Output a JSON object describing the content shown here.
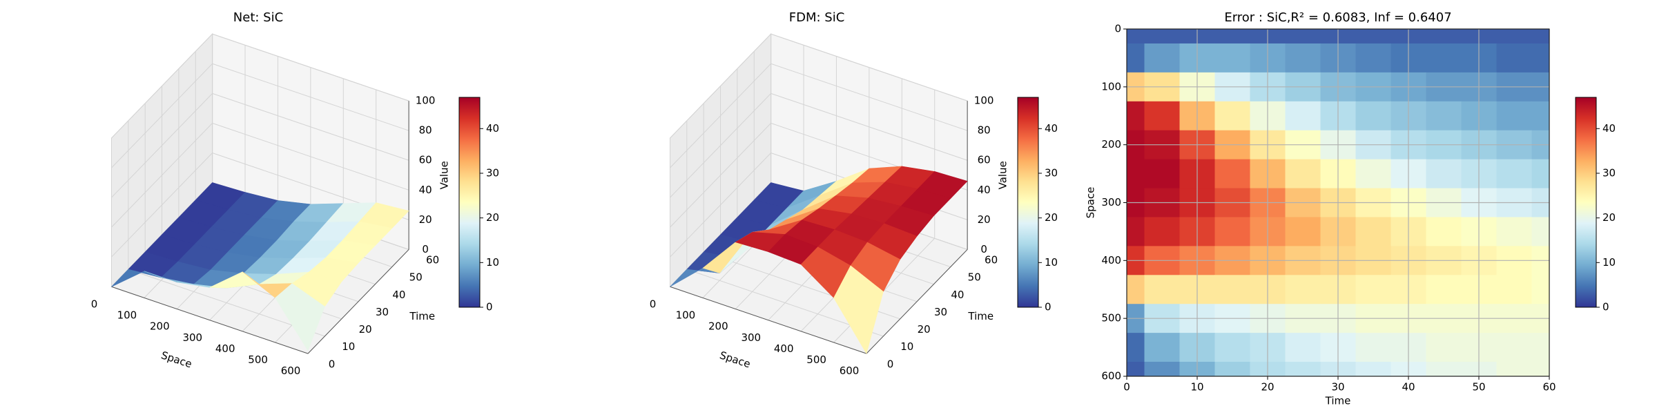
{
  "chart_data": [
    {
      "type": "surface3d",
      "title": "Net: SiC",
      "xlabel": "Space",
      "ylabel": "Time",
      "zlabel": "Value",
      "x": [
        0,
        100,
        200,
        300,
        400,
        500,
        600
      ],
      "y": [
        0,
        10,
        20,
        30,
        40,
        50,
        60
      ],
      "z": [
        [
          0,
          0,
          0,
          0,
          0,
          0,
          0
        ],
        [
          18,
          2,
          1,
          1,
          1,
          1,
          1
        ],
        [
          18,
          5,
          3,
          3,
          3,
          3,
          3
        ],
        [
          22,
          10,
          8,
          7,
          7,
          8,
          8
        ],
        [
          40,
          20,
          15,
          14,
          14,
          15,
          16
        ],
        [
          30,
          28,
          24,
          22,
          22,
          23,
          24
        ],
        [
          2,
          20,
          25,
          26,
          26,
          26,
          26
        ]
      ],
      "xlim": [
        0,
        600
      ],
      "ylim": [
        0,
        60
      ],
      "zlim": [
        0,
        100
      ],
      "xticks": [
        0,
        100,
        200,
        300,
        400,
        500,
        600
      ],
      "yticks": [
        0,
        10,
        20,
        30,
        40,
        50,
        60
      ],
      "zticks": [
        0,
        20,
        40,
        60,
        80,
        100
      ],
      "colormap": "RdYlBu_r",
      "clim": [
        0,
        47
      ],
      "cticks": [
        0,
        10,
        20,
        30,
        40
      ]
    },
    {
      "type": "surface3d",
      "title": "FDM: SiC",
      "xlabel": "Space",
      "ylabel": "Time",
      "zlabel": "Value",
      "x": [
        0,
        100,
        200,
        300,
        400,
        500,
        600
      ],
      "y": [
        0,
        10,
        20,
        30,
        40,
        50,
        60
      ],
      "z": [
        [
          0,
          0,
          0,
          0,
          0,
          0,
          0
        ],
        [
          20,
          5,
          3,
          2,
          2,
          2,
          2
        ],
        [
          45,
          40,
          30,
          25,
          20,
          18,
          16
        ],
        [
          46,
          46,
          44,
          40,
          37,
          34,
          32
        ],
        [
          45,
          45,
          45,
          44,
          43,
          42,
          41
        ],
        [
          30,
          40,
          44,
          45,
          45,
          45,
          45
        ],
        [
          0,
          30,
          40,
          44,
          46,
          46,
          46
        ]
      ],
      "xlim": [
        0,
        600
      ],
      "ylim": [
        0,
        60
      ],
      "zlim": [
        0,
        100
      ],
      "xticks": [
        0,
        100,
        200,
        300,
        400,
        500,
        600
      ],
      "yticks": [
        0,
        10,
        20,
        30,
        40,
        50,
        60
      ],
      "zticks": [
        0,
        20,
        40,
        60,
        80,
        100
      ],
      "colormap": "RdYlBu_r",
      "clim": [
        0,
        47
      ],
      "cticks": [
        0,
        10,
        20,
        30,
        40
      ]
    },
    {
      "type": "heatmap",
      "title": "Error : SiC,R² = 0.6083, Inf = 0.6407",
      "xlabel": "Time",
      "ylabel": "Space",
      "x": [
        0,
        5,
        10,
        15,
        20,
        25,
        30,
        35,
        40,
        45,
        50,
        55,
        60
      ],
      "y": [
        0,
        50,
        100,
        150,
        200,
        250,
        300,
        350,
        400,
        450,
        500,
        550,
        600
      ],
      "z": [
        [
          3,
          3,
          3,
          3,
          3,
          3,
          3,
          3,
          3,
          3,
          3,
          3,
          3
        ],
        [
          4,
          8,
          10,
          10,
          9,
          8,
          7,
          6,
          5,
          5,
          5,
          4,
          4
        ],
        [
          30,
          28,
          22,
          18,
          15,
          13,
          11,
          10,
          9,
          8,
          8,
          7,
          7
        ],
        [
          45,
          42,
          32,
          26,
          21,
          18,
          15,
          13,
          12,
          11,
          10,
          9,
          9
        ],
        [
          46,
          45,
          40,
          33,
          27,
          23,
          20,
          17,
          15,
          14,
          13,
          12,
          11
        ],
        [
          46,
          46,
          43,
          38,
          32,
          27,
          24,
          21,
          19,
          17,
          16,
          15,
          14
        ],
        [
          46,
          45,
          43,
          40,
          36,
          31,
          28,
          25,
          23,
          21,
          19,
          18,
          17
        ],
        [
          45,
          43,
          41,
          38,
          35,
          33,
          30,
          28,
          26,
          24,
          23,
          22,
          21
        ],
        [
          42,
          38,
          36,
          34,
          32,
          30,
          29,
          28,
          27,
          26,
          25,
          24,
          23
        ],
        [
          30,
          27,
          27,
          27,
          27,
          26,
          26,
          25,
          25,
          24,
          24,
          24,
          23
        ],
        [
          8,
          16,
          18,
          19,
          20,
          21,
          21,
          22,
          22,
          22,
          22,
          22,
          22
        ],
        [
          4,
          10,
          13,
          15,
          16,
          18,
          19,
          20,
          20,
          21,
          21,
          21,
          21
        ],
        [
          3,
          7,
          10,
          13,
          15,
          16,
          17,
          18,
          19,
          20,
          20,
          21,
          21
        ]
      ],
      "xlim": [
        0,
        60
      ],
      "ylim": [
        600,
        0
      ],
      "xticks": [
        0,
        10,
        20,
        30,
        40,
        50,
        60
      ],
      "yticks": [
        0,
        100,
        200,
        300,
        400,
        500,
        600
      ],
      "grid": true,
      "colormap": "RdYlBu_r",
      "clim": [
        0,
        47
      ],
      "cticks": [
        0,
        10,
        20,
        30,
        40
      ]
    }
  ]
}
